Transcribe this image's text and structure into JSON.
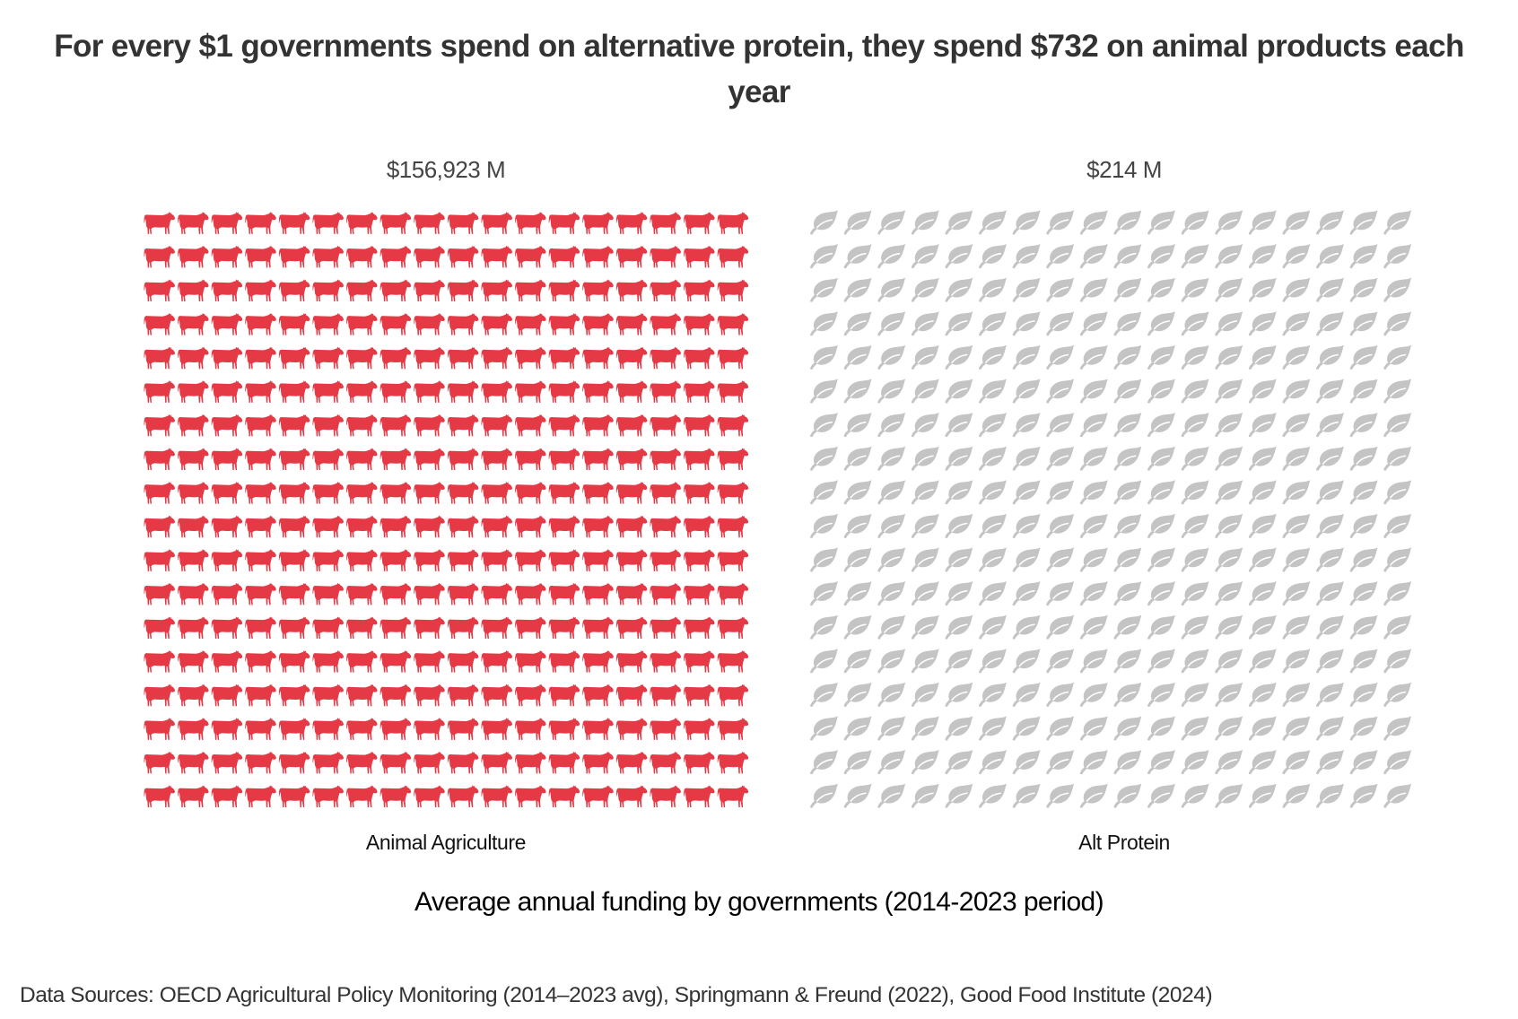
{
  "title": "For every $1 governments spend on alternative protein, they spend $732 on animal products each year",
  "chart_data": {
    "type": "waffle",
    "title": "For every $1 governments spend on alternative protein, they spend $732 on animal products each year",
    "xlabel": "Average annual funding by governments (2014-2023 period)",
    "ylabel": "",
    "grid": {
      "rows": 18,
      "cols": 18
    },
    "categories": [
      "Animal Agriculture",
      "Alt Protein"
    ],
    "values": [
      156923,
      214
    ],
    "unit": "M USD",
    "value_labels": [
      "$156,923 M",
      "$214 M"
    ],
    "series": [
      {
        "name": "Animal Agriculture",
        "value": 156923,
        "label": "$156,923 M",
        "icon": "cow-icon",
        "color": "#E63946"
      },
      {
        "name": "Alt Protein",
        "value": 214,
        "label": "$214 M",
        "icon": "leaf-icon",
        "color": "#0B7A0B",
        "empty_color": "#C4C4C4"
      }
    ],
    "ratio_label": "$732",
    "source": "Data Sources: OECD Agricultural Policy Monitoring (2014–2023 avg), Springmann & Freund (2022), Good Food Institute (2024)"
  },
  "labels": {
    "animal_value": "$156,923 M",
    "alt_value": "$214 M",
    "animal_category": "Animal Agriculture",
    "alt_category": "Alt Protein",
    "axis_title": "Average annual funding by governments (2014-2023 period)",
    "sources": "Data Sources: OECD Agricultural Policy Monitoring (2014–2023 avg), Springmann & Freund (2022), Good Food Institute (2024)"
  }
}
